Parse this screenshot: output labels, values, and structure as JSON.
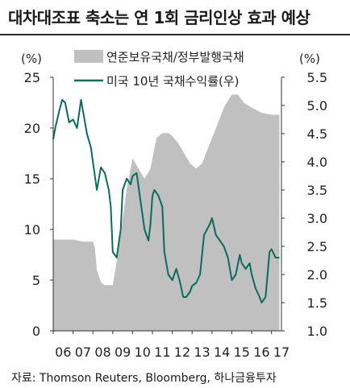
{
  "title": "대차대조표 축소는 연 1회 금리인상 효과 예상",
  "source": "자료: Thomson Reuters, Bloomberg, 하나금융투자",
  "colors": {
    "area": "#c0c0c0",
    "line": "#0c6b5b",
    "axis": "#333333",
    "text": "#222222"
  },
  "chart_data": {
    "type": "area",
    "y_left_unit": "(%)",
    "y_right_unit": "(%)",
    "y_left_ticks": [
      "0",
      "5",
      "10",
      "15",
      "20",
      "25"
    ],
    "y_right_ticks": [
      "1.0",
      "1.5",
      "2.0",
      "2.5",
      "3.0",
      "3.5",
      "4.0",
      "4.5",
      "5.0",
      "5.5"
    ],
    "x_ticks": [
      "06",
      "07",
      "08",
      "09",
      "10",
      "11",
      "12",
      "13",
      "14",
      "15",
      "16",
      "17"
    ],
    "y_left_range": [
      0,
      25
    ],
    "y_right_range": [
      1.0,
      5.5
    ],
    "x_range": [
      2006.0,
      2017.5
    ],
    "legend_placement": "top",
    "series": [
      {
        "name": "연준보유국채/정부발행국채",
        "axis": "left",
        "style": "area",
        "x": [
          2006.0,
          2007.0,
          2007.5,
          2008.0,
          2008.1,
          2008.2,
          2008.4,
          2008.6,
          2008.8,
          2009.0,
          2009.3,
          2009.5,
          2009.7,
          2010.0,
          2010.3,
          2010.6,
          2010.9,
          2011.2,
          2011.5,
          2011.8,
          2012.0,
          2012.3,
          2012.6,
          2012.9,
          2013.2,
          2013.5,
          2013.8,
          2014.0,
          2014.3,
          2014.6,
          2014.9,
          2015.0,
          2015.3,
          2015.6,
          2016.0,
          2016.5,
          2017.0,
          2017.4
        ],
        "values": [
          9.0,
          9.0,
          8.8,
          8.8,
          8.2,
          6.0,
          4.8,
          4.5,
          4.5,
          4.5,
          8.0,
          11.0,
          14.0,
          17.0,
          16.0,
          15.0,
          16.0,
          19.0,
          19.5,
          19.5,
          19.2,
          18.5,
          17.5,
          16.5,
          16.0,
          16.5,
          18.0,
          19.0,
          20.5,
          22.0,
          23.0,
          23.3,
          23.3,
          22.5,
          22.0,
          21.5,
          21.3,
          21.3
        ]
      },
      {
        "name": "미국 10년 국채수익률(우)",
        "axis": "right",
        "style": "line",
        "x": [
          2006.0,
          2006.1,
          2006.3,
          2006.45,
          2006.6,
          2006.8,
          2007.0,
          2007.2,
          2007.4,
          2007.5,
          2007.7,
          2007.9,
          2008.0,
          2008.2,
          2008.4,
          2008.6,
          2008.8,
          2008.9,
          2009.0,
          2009.2,
          2009.4,
          2009.5,
          2009.7,
          2009.9,
          2010.0,
          2010.2,
          2010.4,
          2010.6,
          2010.8,
          2010.9,
          2011.0,
          2011.1,
          2011.3,
          2011.5,
          2011.6,
          2011.8,
          2012.0,
          2012.2,
          2012.4,
          2012.55,
          2012.7,
          2012.9,
          2013.0,
          2013.2,
          2013.4,
          2013.6,
          2013.75,
          2013.9,
          2014.0,
          2014.2,
          2014.4,
          2014.6,
          2014.8,
          2015.0,
          2015.2,
          2015.4,
          2015.5,
          2015.7,
          2015.9,
          2016.0,
          2016.2,
          2016.4,
          2016.5,
          2016.7,
          2016.9,
          2017.0,
          2017.2,
          2017.4
        ],
        "values": [
          4.4,
          4.6,
          4.9,
          5.1,
          5.05,
          4.7,
          4.75,
          4.6,
          5.1,
          4.9,
          4.5,
          4.25,
          4.0,
          3.5,
          3.9,
          3.8,
          3.5,
          3.2,
          2.4,
          2.3,
          2.8,
          3.5,
          3.7,
          3.6,
          3.75,
          3.8,
          3.3,
          2.8,
          2.6,
          2.9,
          3.4,
          3.5,
          3.4,
          3.2,
          2.4,
          2.0,
          1.9,
          2.1,
          1.85,
          1.6,
          1.6,
          1.7,
          1.8,
          1.85,
          2.0,
          2.7,
          2.8,
          2.9,
          3.0,
          2.7,
          2.6,
          2.5,
          2.3,
          1.9,
          2.0,
          2.35,
          2.2,
          2.1,
          2.2,
          2.0,
          1.75,
          1.6,
          1.5,
          1.6,
          2.4,
          2.45,
          2.3,
          2.3
        ]
      }
    ]
  }
}
